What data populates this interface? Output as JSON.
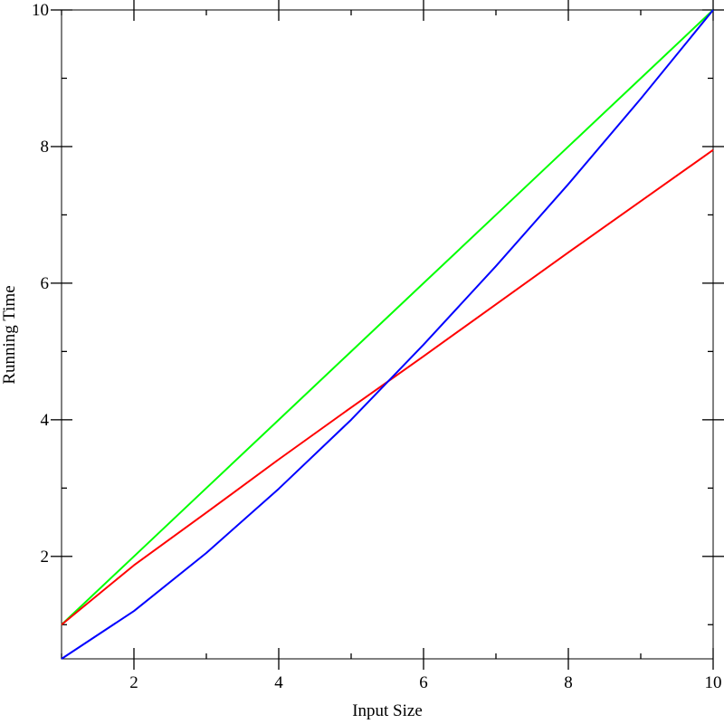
{
  "chart_data": {
    "type": "line",
    "title": "",
    "xlabel": "Input Size",
    "ylabel": "Running Time",
    "xlim": [
      1,
      10
    ],
    "ylim": [
      0.5,
      10
    ],
    "x_ticks": [
      2,
      4,
      6,
      8,
      10
    ],
    "y_ticks": [
      2,
      4,
      6,
      8,
      10
    ],
    "x_tick_labels": [
      "2",
      "4",
      "6",
      "8",
      "10"
    ],
    "y_tick_labels": [
      "2",
      "4",
      "6",
      "8",
      "10"
    ],
    "grid": false,
    "legend": "none",
    "series": [
      {
        "color": "#00ff00",
        "x": [
          1,
          2,
          3,
          4,
          5,
          6,
          7,
          8,
          9,
          10
        ],
        "y": [
          1,
          2,
          3,
          4,
          5,
          6,
          7,
          8,
          9,
          10
        ]
      },
      {
        "color": "#ff0000",
        "x": [
          1,
          2,
          3,
          4,
          5,
          6,
          7,
          8,
          9,
          10
        ],
        "y": [
          1.0,
          1.87,
          2.64,
          3.42,
          4.18,
          4.93,
          5.69,
          6.45,
          7.2,
          7.95
        ]
      },
      {
        "color": "#0000ff",
        "x": [
          1,
          2,
          3,
          4,
          5,
          6,
          7,
          8,
          9,
          10
        ],
        "y": [
          0.5,
          1.2,
          2.05,
          2.99,
          4.0,
          5.1,
          6.25,
          7.45,
          8.7,
          10.0
        ]
      }
    ]
  }
}
